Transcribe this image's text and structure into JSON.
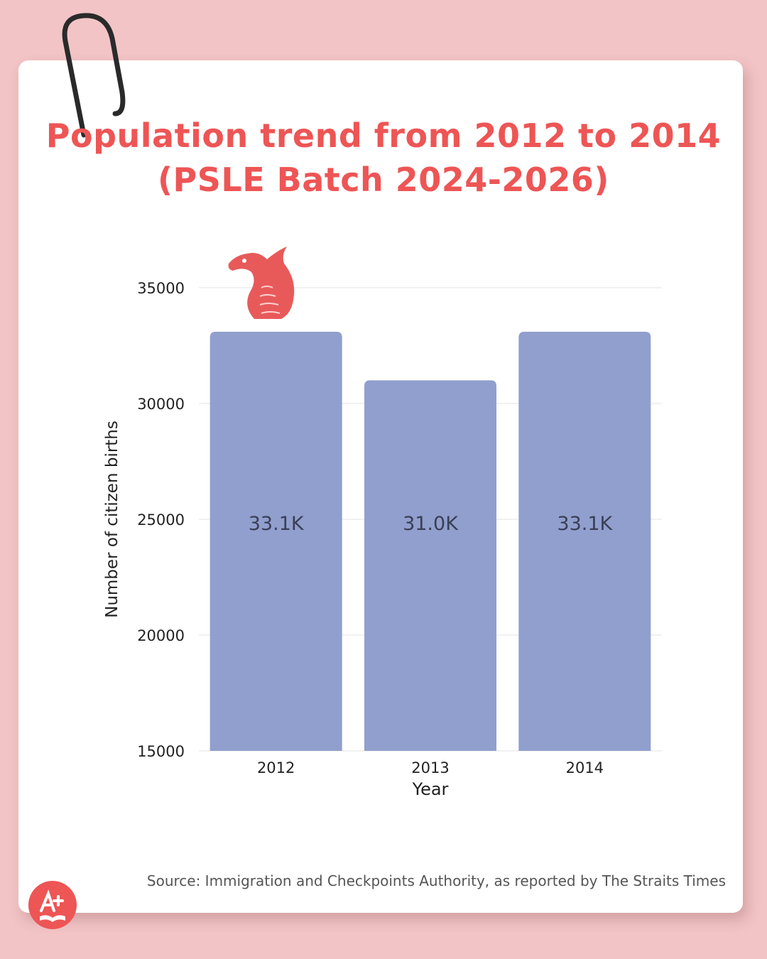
{
  "title_line1": "Population trend from 2012 to 2014",
  "title_line2": "(PSLE Batch 2024-2026)",
  "source": "Source: Immigration and Checkpoints Authority, as reported by The Straits Times",
  "colors": {
    "bar": "#909fcd",
    "title": "#ee5555",
    "background": "#f2c4c6",
    "grid": "#e3e3e3"
  },
  "icons": [
    "paperclip-icon",
    "dragon-icon",
    "a-plus-logo-icon"
  ],
  "chart_data": {
    "type": "bar",
    "title": "Population trend from 2012 to 2014 (PSLE Batch 2024-2026)",
    "xlabel": "Year",
    "ylabel": "Number of citizen births",
    "categories": [
      "2012",
      "2013",
      "2014"
    ],
    "values": [
      33100,
      31000,
      33100
    ],
    "data_labels": [
      "33.1K",
      "31.0K",
      "33.1K"
    ],
    "ylim": [
      15000,
      35000
    ],
    "yticks": [
      "15000",
      "20000",
      "25000",
      "30000",
      "35000"
    ],
    "grid": true,
    "legend": "none"
  }
}
